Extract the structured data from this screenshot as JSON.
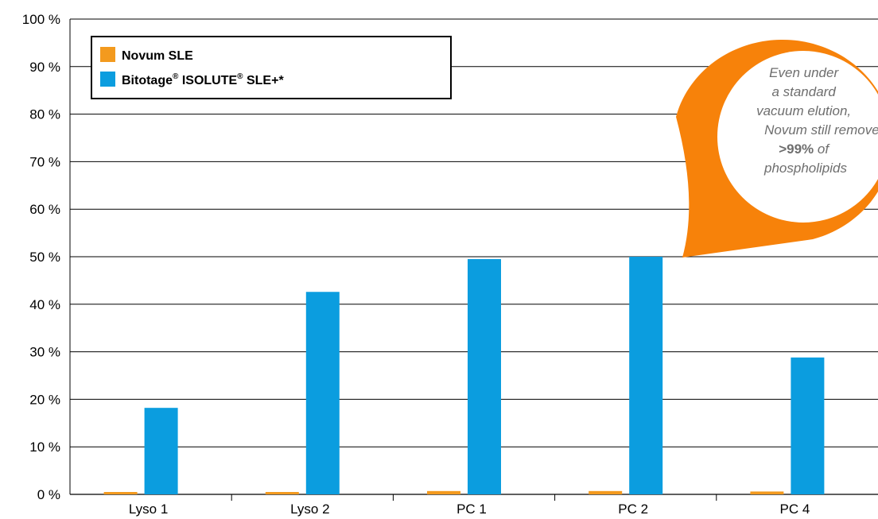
{
  "chart_data": {
    "type": "bar",
    "categories": [
      "Lyso 1",
      "Lyso 2",
      "PC 1",
      "PC 2",
      "PC 4"
    ],
    "series": [
      {
        "name": "Novum SLE",
        "values": [
          0.5,
          0.5,
          0.7,
          0.7,
          0.6
        ],
        "color": "#f39a1e"
      },
      {
        "name": "Bitotage® ISOLUTE® SLE+*",
        "values": [
          18.2,
          42.6,
          49.5,
          50.0,
          28.8
        ],
        "color": "#0b9ddf"
      }
    ],
    "ylim": [
      0,
      100
    ],
    "yticks": [
      0,
      10,
      20,
      30,
      40,
      50,
      60,
      70,
      80,
      90,
      100
    ],
    "ytick_labels": [
      "0 %",
      "10 %",
      "20 %",
      "30 %",
      "40 %",
      "50 %",
      "60 %",
      "70 %",
      "80 %",
      "90 %",
      "100 %"
    ],
    "grid": true,
    "legend_position": "top-left",
    "legend_labels": {
      "novum": "Novum SLE",
      "biotage_prefix": "Bitotage",
      "reg1": "®",
      "isolute": " ISOLUTE",
      "reg2": "®",
      "biotage_suffix": " SLE+*"
    },
    "annotation": {
      "lines": [
        "Even under",
        "a standard",
        "vacuum elution,",
        "Novum still removes"
      ],
      "bold": ">99%",
      "after_bold": " of",
      "last": "phospholipids",
      "color": "#f7820a"
    }
  }
}
